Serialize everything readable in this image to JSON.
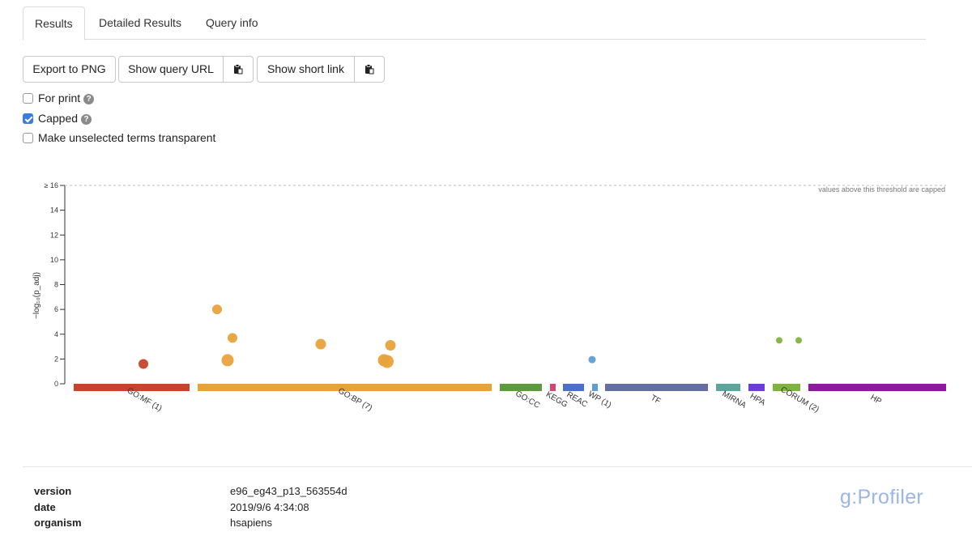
{
  "tabs": [
    "Results",
    "Detailed Results",
    "Query info"
  ],
  "toolbar": {
    "export_label": "Export to PNG",
    "query_url_label": "Show query URL",
    "short_link_label": "Show short link"
  },
  "options": {
    "for_print": {
      "label": "For print",
      "checked": false
    },
    "capped": {
      "label": "Capped",
      "checked": true
    },
    "transparent": {
      "label": "Make unselected terms transparent",
      "checked": false
    }
  },
  "chart_data": {
    "type": "scatter",
    "ylabel": "−log₁₀(p_adj)",
    "ylim": [
      0,
      16
    ],
    "yticks": [
      "0",
      "2",
      "4",
      "6",
      "8",
      "10",
      "12",
      "14",
      "≥ 16"
    ],
    "threshold_note": "values above this threshold are capped",
    "sources": [
      {
        "label": "GO:MF (1)",
        "color": "#c7432a"
      },
      {
        "label": "GO:BP (7)",
        "color": "#e9a23b"
      },
      {
        "label": "GO:CC",
        "color": "#5b9b3d"
      },
      {
        "label": "KEGG",
        "color": "#d7476b"
      },
      {
        "label": "REAC",
        "color": "#4a70c9"
      },
      {
        "label": "WP (1)",
        "color": "#5f9ed5"
      },
      {
        "label": "TF",
        "color": "#646ea2"
      },
      {
        "label": "MIRNA",
        "color": "#5ba59b"
      },
      {
        "label": "HPA",
        "color": "#6a3fd1"
      },
      {
        "label": "CORUM (2)",
        "color": "#7fb43e"
      },
      {
        "label": "HP",
        "color": "#8c1a9c"
      }
    ],
    "points": [
      {
        "source": "GO:MF (1)",
        "y": 1.6
      },
      {
        "source": "GO:BP (7)",
        "y": 6.0
      },
      {
        "source": "GO:BP (7)",
        "y": 3.7
      },
      {
        "source": "GO:BP (7)",
        "y": 1.9
      },
      {
        "source": "GO:BP (7)",
        "y": 3.2
      },
      {
        "source": "GO:BP (7)",
        "y": 3.1
      },
      {
        "source": "GO:BP (7)",
        "y": 1.9
      },
      {
        "source": "GO:BP (7)",
        "y": 1.8
      },
      {
        "source": "WP (1)",
        "y": 1.95
      },
      {
        "source": "CORUM (2)",
        "y": 3.5
      },
      {
        "source": "CORUM (2)",
        "y": 3.5
      }
    ]
  },
  "meta": [
    {
      "label": "version",
      "value": "e96_eg43_p13_563554d"
    },
    {
      "label": "date",
      "value": "2019/9/6 4:34:08"
    },
    {
      "label": "organism",
      "value": "hsapiens"
    }
  ],
  "brand": "g:Profiler",
  "icons": {
    "clipboard": "clipboard-icon",
    "help": "help-icon"
  }
}
